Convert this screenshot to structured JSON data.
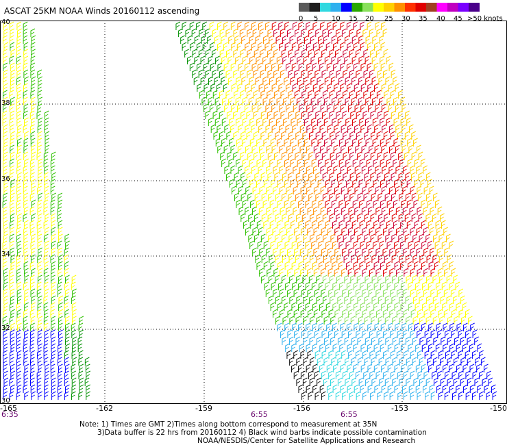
{
  "title": "ASCAT 25KM NOAA Winds 20160112 ascending",
  "legend": {
    "labels": [
      "0",
      "5",
      "10",
      "15",
      "20",
      "25",
      "30",
      "35",
      "40",
      "45",
      ">50 knots"
    ],
    "colors": [
      "#5a5a5a",
      "#1e1e1e",
      "#30d8e0",
      "#2eb0ee",
      "#0000ff",
      "#28a800",
      "#88e05a",
      "#ffff00",
      "#ffd000",
      "#ff9000",
      "#ff3000",
      "#e00000",
      "#a04020",
      "#ff00ff",
      "#c000c0",
      "#7a00ff",
      "#4a008a"
    ]
  },
  "axes": {
    "lat_labels": [
      "40",
      "38",
      "36",
      "34",
      "32",
      "30"
    ],
    "lon_labels": [
      "-165",
      "-162",
      "-159",
      "-156",
      "-153",
      "-150"
    ]
  },
  "times": [
    "6:35",
    "6:55",
    "6:55"
  ],
  "notes": {
    "line1": "Note: 1) Times are GMT 2)Times along bottom correspond to measurement at 35N",
    "line2": "3)Data buffer is 22 hrs from 20160112 4) Black wind barbs indicate possible contamination",
    "line3": "NOAA/NESDIS/Center for Satellite Applications and Research"
  },
  "wind_scale": {
    "speed_colors": [
      "#0000ff",
      "#2eb0ee",
      "#30d8e0",
      "#009000",
      "#2ec000",
      "#88e05a",
      "#ffff00",
      "#ffd000",
      "#ff9000",
      "#ff3000",
      "#e00000",
      "#cc0030"
    ]
  }
}
